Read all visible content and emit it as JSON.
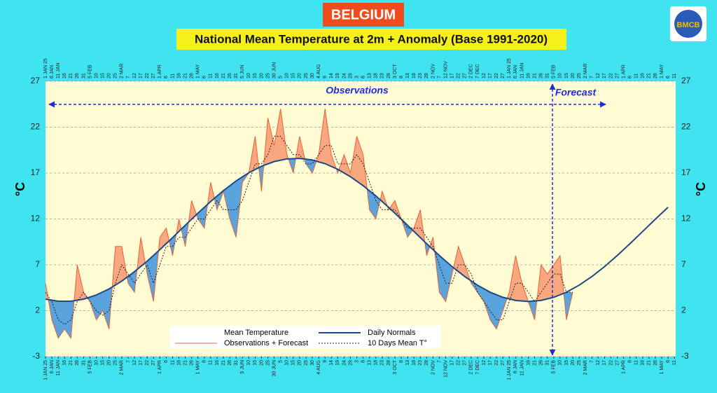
{
  "chart_data": {
    "type": "line",
    "title": "BELGIUM",
    "subtitle": "National Mean Temperature at 2m + Anomaly (Base 1991-2020)",
    "logo": "BMCB",
    "ylabel": "°C",
    "y2label": "°C",
    "ylim": [
      -3,
      27
    ],
    "yticks": [
      -3,
      2,
      7,
      12,
      17,
      22,
      27
    ],
    "grid": true,
    "xlim": [
      0,
      496
    ],
    "xticks": [
      {
        "value": 0,
        "label": "1 JAN 25"
      },
      {
        "value": 5,
        "label": "6 JAN"
      },
      {
        "value": 10,
        "label": "11 JAN"
      },
      {
        "value": 15,
        "label": "16"
      },
      {
        "value": 20,
        "label": "21"
      },
      {
        "value": 25,
        "label": "26"
      },
      {
        "value": 30,
        "label": "31"
      },
      {
        "value": 35,
        "label": "5 FEB"
      },
      {
        "value": 40,
        "label": "10"
      },
      {
        "value": 45,
        "label": "15"
      },
      {
        "value": 50,
        "label": "20"
      },
      {
        "value": 55,
        "label": "25"
      },
      {
        "value": 60,
        "label": "2 MAR"
      },
      {
        "value": 65,
        "label": "7"
      },
      {
        "value": 70,
        "label": "12"
      },
      {
        "value": 75,
        "label": "17"
      },
      {
        "value": 80,
        "label": "22"
      },
      {
        "value": 85,
        "label": "27"
      },
      {
        "value": 90,
        "label": "1 APR"
      },
      {
        "value": 95,
        "label": "6"
      },
      {
        "value": 100,
        "label": "11"
      },
      {
        "value": 105,
        "label": "16"
      },
      {
        "value": 110,
        "label": "21"
      },
      {
        "value": 115,
        "label": "26"
      },
      {
        "value": 120,
        "label": "1 MAY"
      },
      {
        "value": 125,
        "label": "6"
      },
      {
        "value": 130,
        "label": "11"
      },
      {
        "value": 135,
        "label": "16"
      },
      {
        "value": 140,
        "label": "21"
      },
      {
        "value": 145,
        "label": "26"
      },
      {
        "value": 150,
        "label": "31"
      },
      {
        "value": 155,
        "label": "5 JUN"
      },
      {
        "value": 160,
        "label": "10"
      },
      {
        "value": 165,
        "label": "15"
      },
      {
        "value": 170,
        "label": "20"
      },
      {
        "value": 175,
        "label": "25"
      },
      {
        "value": 180,
        "label": "30 JUN"
      },
      {
        "value": 185,
        "label": "5"
      },
      {
        "value": 190,
        "label": "10"
      },
      {
        "value": 195,
        "label": "15"
      },
      {
        "value": 200,
        "label": "20"
      },
      {
        "value": 205,
        "label": "25"
      },
      {
        "value": 210,
        "label": "30"
      },
      {
        "value": 215,
        "label": "4 AUG"
      },
      {
        "value": 220,
        "label": "9"
      },
      {
        "value": 225,
        "label": "14"
      },
      {
        "value": 230,
        "label": "19"
      },
      {
        "value": 235,
        "label": "24"
      },
      {
        "value": 240,
        "label": "29"
      },
      {
        "value": 245,
        "label": "3"
      },
      {
        "value": 250,
        "label": "8"
      },
      {
        "value": 255,
        "label": "13"
      },
      {
        "value": 260,
        "label": "18"
      },
      {
        "value": 265,
        "label": "23"
      },
      {
        "value": 270,
        "label": "28"
      },
      {
        "value": 275,
        "label": "3 OCT"
      },
      {
        "value": 280,
        "label": "8"
      },
      {
        "value": 285,
        "label": "13"
      },
      {
        "value": 290,
        "label": "18"
      },
      {
        "value": 295,
        "label": "23"
      },
      {
        "value": 300,
        "label": "28"
      },
      {
        "value": 305,
        "label": "2 NOV"
      },
      {
        "value": 310,
        "label": "7"
      },
      {
        "value": 315,
        "label": "12 NOV"
      },
      {
        "value": 320,
        "label": "17"
      },
      {
        "value": 325,
        "label": "22"
      },
      {
        "value": 330,
        "label": "27"
      },
      {
        "value": 335,
        "label": "2 DEC"
      },
      {
        "value": 340,
        "label": "7 DEC"
      },
      {
        "value": 345,
        "label": "12"
      },
      {
        "value": 350,
        "label": "17"
      },
      {
        "value": 355,
        "label": "22"
      },
      {
        "value": 360,
        "label": "27"
      },
      {
        "value": 365,
        "label": "1 JAN 25"
      },
      {
        "value": 370,
        "label": "6 JAN"
      },
      {
        "value": 375,
        "label": "11 JAN"
      },
      {
        "value": 380,
        "label": "16"
      },
      {
        "value": 385,
        "label": "21"
      },
      {
        "value": 390,
        "label": "26"
      },
      {
        "value": 395,
        "label": "31"
      },
      {
        "value": 400,
        "label": "5 FEB"
      },
      {
        "value": 405,
        "label": "10"
      },
      {
        "value": 410,
        "label": "15"
      },
      {
        "value": 415,
        "label": "20"
      },
      {
        "value": 420,
        "label": "25"
      },
      {
        "value": 425,
        "label": "2 MAR"
      },
      {
        "value": 430,
        "label": "7"
      },
      {
        "value": 435,
        "label": "12"
      },
      {
        "value": 440,
        "label": "17"
      },
      {
        "value": 445,
        "label": "22"
      },
      {
        "value": 450,
        "label": "27"
      },
      {
        "value": 455,
        "label": "1 APR"
      },
      {
        "value": 460,
        "label": "6"
      },
      {
        "value": 465,
        "label": "11"
      },
      {
        "value": 470,
        "label": "16"
      },
      {
        "value": 475,
        "label": "21"
      },
      {
        "value": 480,
        "label": "26"
      },
      {
        "value": 485,
        "label": "1 MAY"
      },
      {
        "value": 490,
        "label": "6"
      },
      {
        "value": 495,
        "label": "11"
      }
    ],
    "fill": {
      "name": "Mean Temperature",
      "above_color": "#f9a77f",
      "below_color": "#5ba3dc"
    },
    "series": [
      {
        "name": "Observations + Forecast",
        "color": "#e8623a",
        "x": [
          0,
          5,
          10,
          15,
          20,
          25,
          30,
          35,
          40,
          45,
          50,
          55,
          60,
          65,
          70,
          75,
          80,
          85,
          90,
          95,
          100,
          105,
          110,
          115,
          120,
          125,
          130,
          135,
          140,
          145,
          150,
          155,
          160,
          165,
          170,
          175,
          180,
          185,
          190,
          195,
          200,
          205,
          210,
          215,
          220,
          225,
          230,
          235,
          240,
          245,
          250,
          255,
          260,
          265,
          270,
          275,
          280,
          285,
          290,
          295,
          300,
          305,
          310,
          315,
          320,
          325,
          330,
          335,
          340,
          345,
          350,
          355,
          360,
          365,
          370,
          375,
          380,
          385,
          390,
          395,
          400,
          405,
          410,
          415
        ],
        "values": [
          5,
          1,
          -1,
          0,
          -1,
          7,
          4,
          3,
          1,
          2,
          0,
          9,
          9,
          5,
          4,
          10,
          6,
          3,
          10,
          11,
          8,
          12,
          9,
          14,
          12,
          11,
          16,
          13,
          15,
          12,
          10,
          16,
          17,
          21,
          15,
          23,
          20,
          24,
          19,
          17,
          21,
          18,
          17,
          19,
          24,
          19,
          17,
          19,
          17,
          21,
          19,
          13,
          12,
          15,
          13,
          14,
          12,
          10,
          11,
          13,
          8,
          10,
          4,
          3,
          6,
          9,
          7,
          5,
          4,
          3,
          1,
          0,
          2,
          4,
          8,
          5,
          3,
          1,
          7,
          6,
          7,
          8,
          1,
          4
        ]
      },
      {
        "name": "Daily Normals",
        "color": "#1c4a87",
        "x": [
          0,
          10,
          20,
          30,
          40,
          50,
          60,
          70,
          80,
          90,
          100,
          110,
          120,
          130,
          140,
          150,
          160,
          170,
          180,
          190,
          200,
          210,
          220,
          230,
          240,
          250,
          260,
          270,
          280,
          290,
          300,
          310,
          320,
          330,
          340,
          350,
          360,
          370,
          380,
          390,
          400,
          410,
          420,
          430,
          440,
          450,
          460,
          470,
          480,
          490
        ],
        "values": [
          3.26,
          3.03,
          3.03,
          3.26,
          3.71,
          4.37,
          5.22,
          6.25,
          7.39,
          8.65,
          9.96,
          11.31,
          12.63,
          13.9,
          15.08,
          16.14,
          17.03,
          17.74,
          18.25,
          18.54,
          18.59,
          18.42,
          18.02,
          17.41,
          16.6,
          15.62,
          14.51,
          13.27,
          11.97,
          10.63,
          9.3,
          8.01,
          6.8,
          5.72,
          4.78,
          4.01,
          3.46,
          3.12,
          3.0,
          3.12,
          3.46,
          4.01,
          4.78,
          5.72,
          6.8,
          8.01,
          9.3,
          10.63,
          11.97,
          13.27
        ]
      },
      {
        "name": "10 Days Mean T°",
        "color": "#222222",
        "dashed": true,
        "x": [
          0,
          5,
          10,
          15,
          20,
          25,
          30,
          35,
          40,
          45,
          50,
          55,
          60,
          65,
          70,
          75,
          80,
          85,
          90,
          95,
          100,
          105,
          110,
          115,
          120,
          125,
          130,
          135,
          140,
          145,
          150,
          155,
          160,
          165,
          170,
          175,
          180,
          185,
          190,
          195,
          200,
          205,
          210,
          215,
          220,
          225,
          230,
          235,
          240,
          245,
          250,
          255,
          260,
          265,
          270,
          275,
          280,
          285,
          290,
          295,
          300,
          305,
          310,
          315,
          320,
          325,
          330,
          335,
          340,
          345,
          350,
          355,
          360,
          365,
          370,
          375,
          380,
          385,
          390,
          395,
          400,
          405,
          410,
          415
        ],
        "values": [
          4,
          3,
          1,
          0.5,
          1,
          3,
          4,
          3,
          2,
          1.5,
          2,
          5,
          7,
          6,
          5,
          6,
          7,
          5,
          7,
          9,
          9,
          10,
          10,
          11,
          12,
          12,
          13,
          14,
          13,
          13,
          13,
          14,
          16,
          18,
          18,
          19,
          21,
          21,
          20,
          19,
          19,
          18,
          18,
          19,
          20,
          20,
          18,
          18,
          18,
          19,
          18,
          16,
          14,
          13,
          13,
          13,
          12,
          11,
          11,
          11,
          10,
          9,
          7,
          5,
          5,
          7,
          7,
          6,
          4,
          3,
          2,
          1,
          1,
          3,
          5,
          5,
          4,
          3,
          4,
          5,
          6,
          6,
          4,
          4
        ]
      }
    ],
    "annotations": {
      "observations": "Observations",
      "forecast": "Forecast",
      "forecast_start": 399
    }
  }
}
